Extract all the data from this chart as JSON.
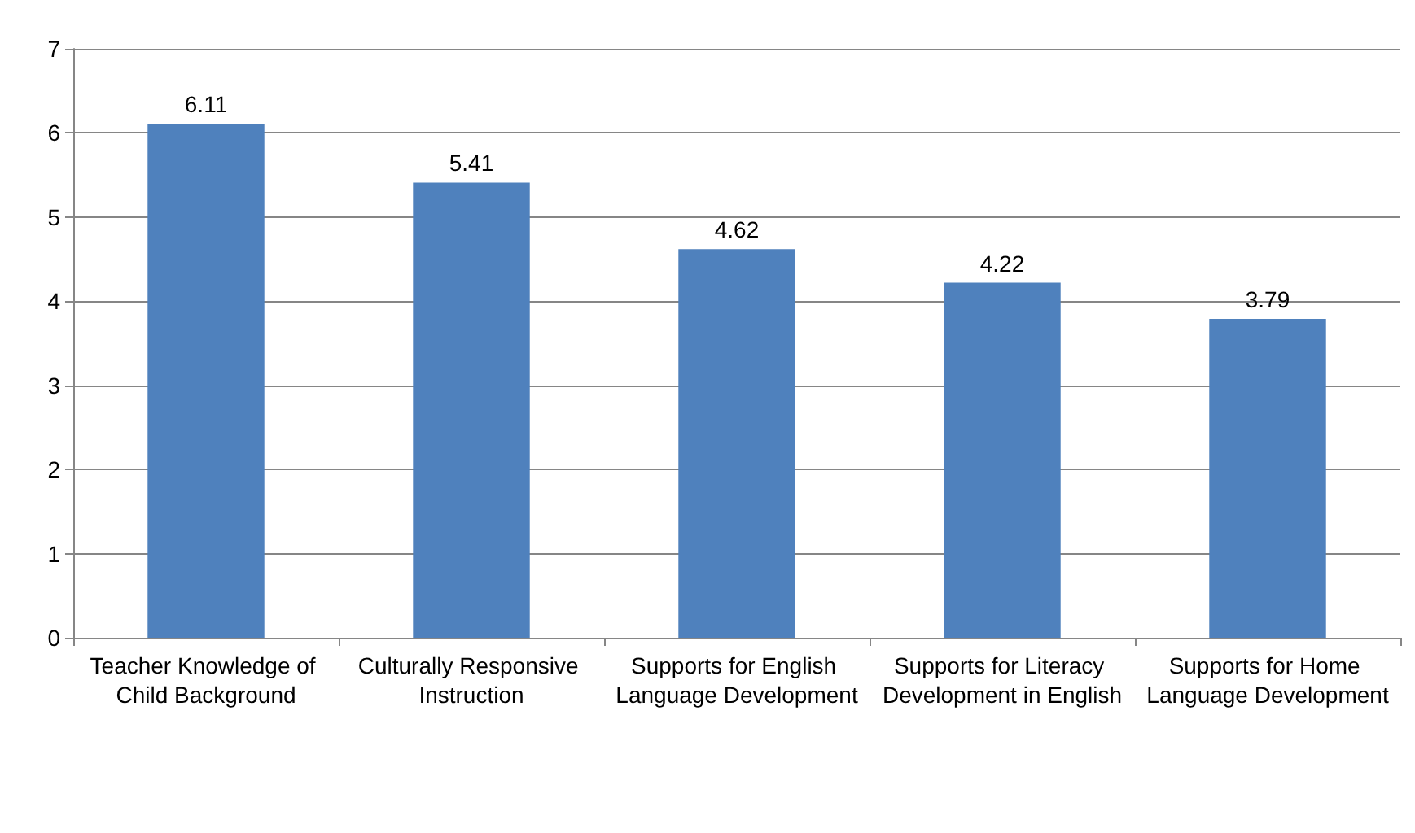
{
  "chart_data": {
    "type": "bar",
    "categories": [
      "Teacher Knowledge of Child Background",
      "Culturally Responsive Instruction",
      "Supports for English Language Development",
      "Supports for Literacy Development in English",
      "Supports for Home Language Development"
    ],
    "values": [
      6.11,
      5.41,
      4.62,
      4.22,
      3.79
    ],
    "color": "#4f81bd",
    "ylim": [
      0,
      7
    ],
    "yticks": [
      0,
      1,
      2,
      3,
      4,
      5,
      6,
      7
    ],
    "grid": "y",
    "data_labels": true
  }
}
